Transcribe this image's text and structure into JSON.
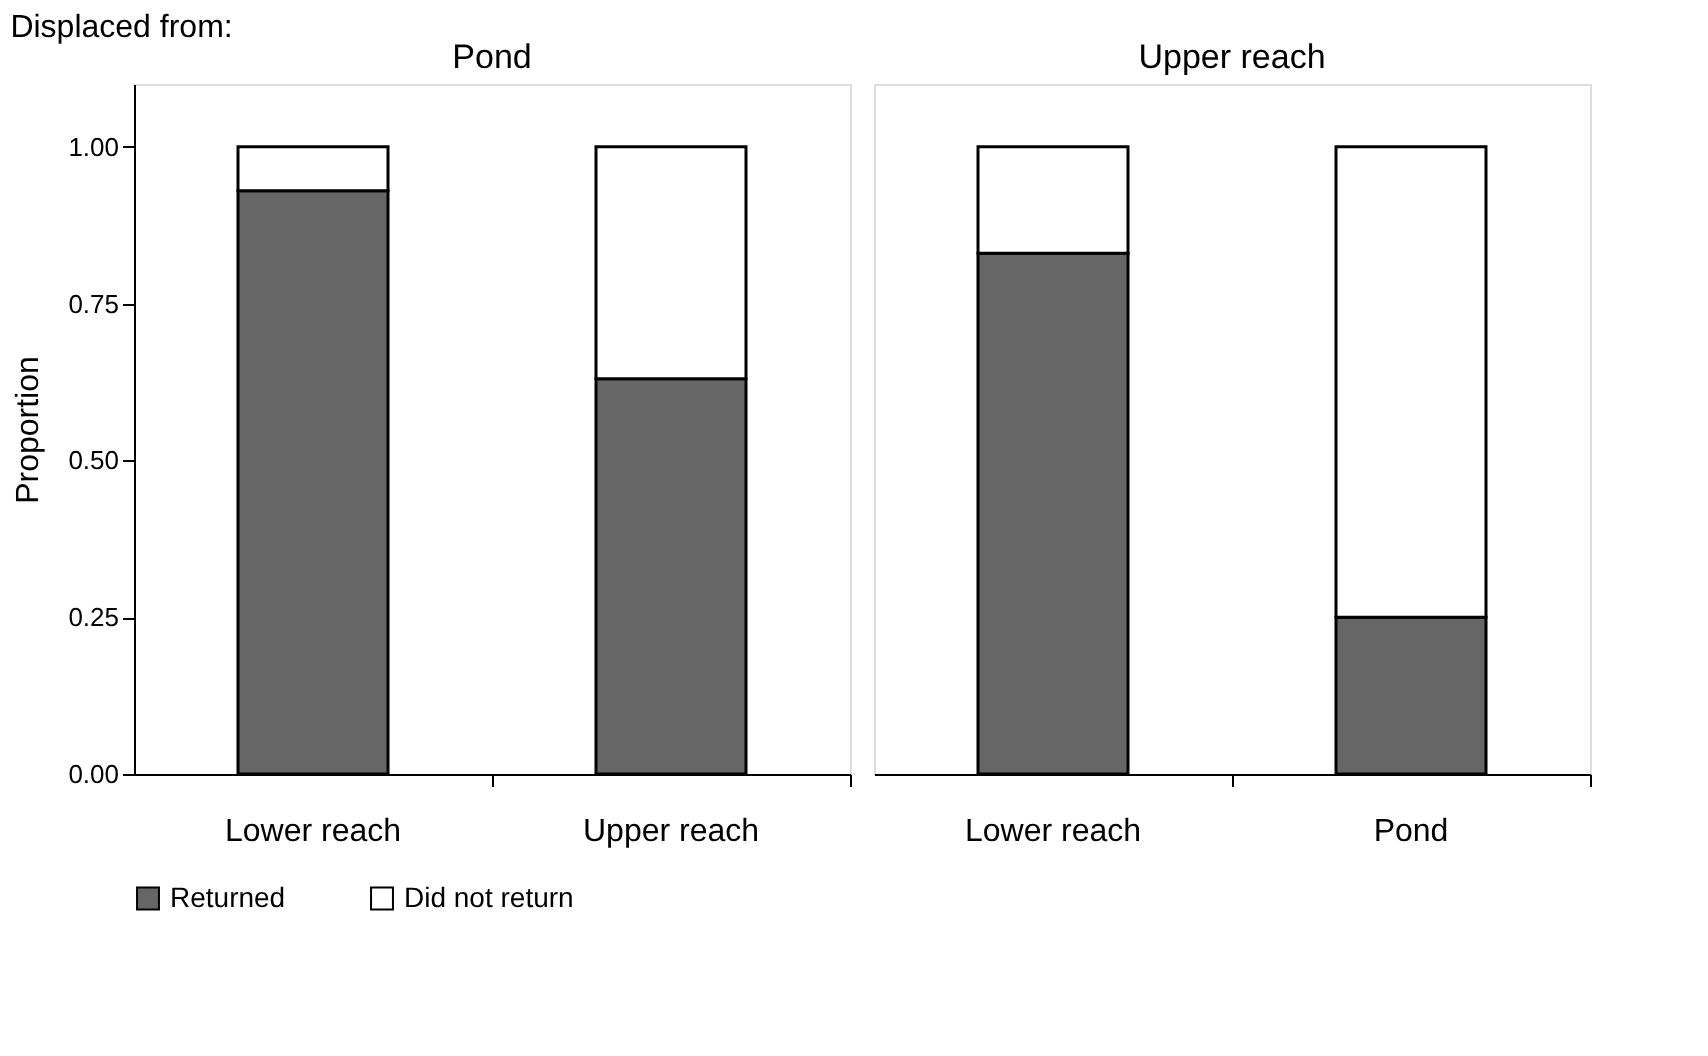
{
  "chart_data": [
    {
      "type": "bar",
      "title": "Pond",
      "annotations": [
        "Displaced from:"
      ],
      "ylabel": "Proportion",
      "stacked": true,
      "categories": [
        "Lower reach",
        "Upper reach"
      ],
      "series": [
        {
          "name": "Returned",
          "color": "#666666",
          "values": [
            0.93,
            0.63
          ]
        },
        {
          "name": "Did not return",
          "color": "#ffffff",
          "values": [
            0.07,
            0.37
          ]
        }
      ],
      "ylim": [
        0,
        1.1
      ],
      "yticks": [
        {
          "value": 0,
          "label": "0.00"
        },
        {
          "value": 0.25,
          "label": "0.25"
        },
        {
          "value": 0.5,
          "label": "0.50"
        },
        {
          "value": 0.75,
          "label": "0.75"
        },
        {
          "value": 1,
          "label": "1.00"
        }
      ],
      "grid": false,
      "legend": "bottom"
    },
    {
      "type": "bar",
      "title": "Upper reach",
      "stacked": true,
      "categories": [
        "Lower reach",
        "Pond"
      ],
      "series": [
        {
          "name": "Returned",
          "color": "#666666",
          "values": [
            0.83,
            0.25
          ]
        },
        {
          "name": "Did not return",
          "color": "#ffffff",
          "values": [
            0.17,
            0.75
          ]
        }
      ],
      "ylim": [
        0,
        1.1
      ],
      "tick_labels": "x",
      "grid": false,
      "legend": "bottom"
    }
  ]
}
